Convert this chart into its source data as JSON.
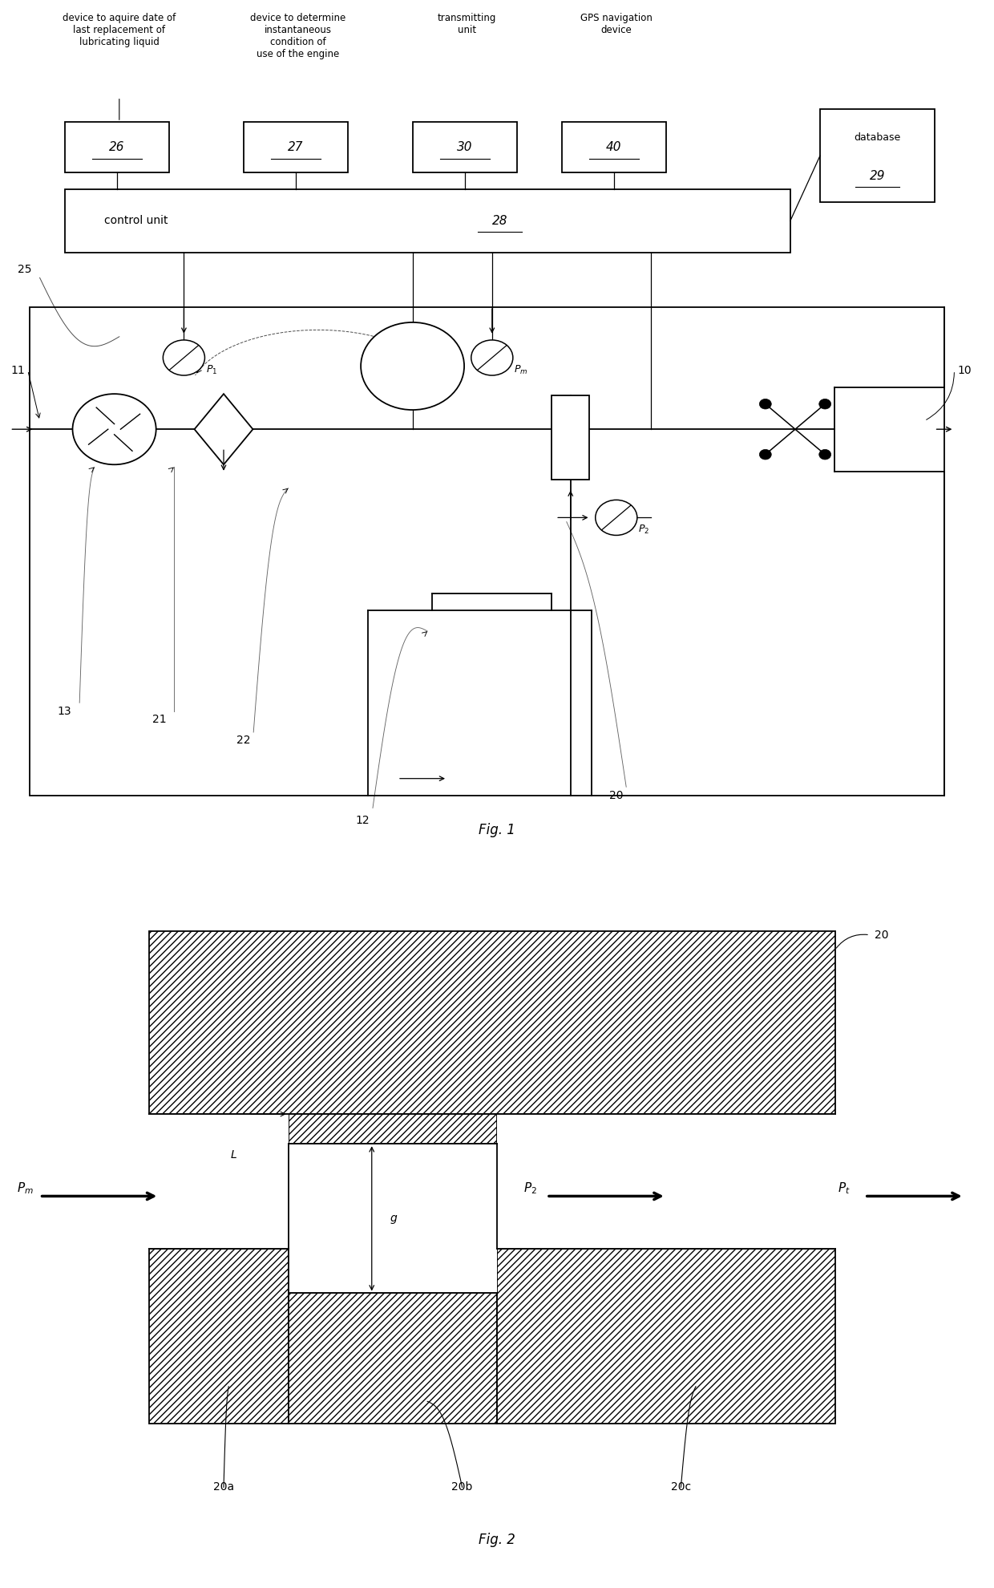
{
  "background_color": "#ffffff",
  "fig1": {
    "title": "Fig. 1",
    "text26": "device to aquire date of\nlast replacement of\nlubricating liquid",
    "text27": "device to determine\ninstantaneous\ncondition of\nuse of the engine",
    "text30": "transmitting\nunit",
    "text40": "GPS navigation\ndevice"
  },
  "fig2": {
    "title": "Fig. 2"
  }
}
